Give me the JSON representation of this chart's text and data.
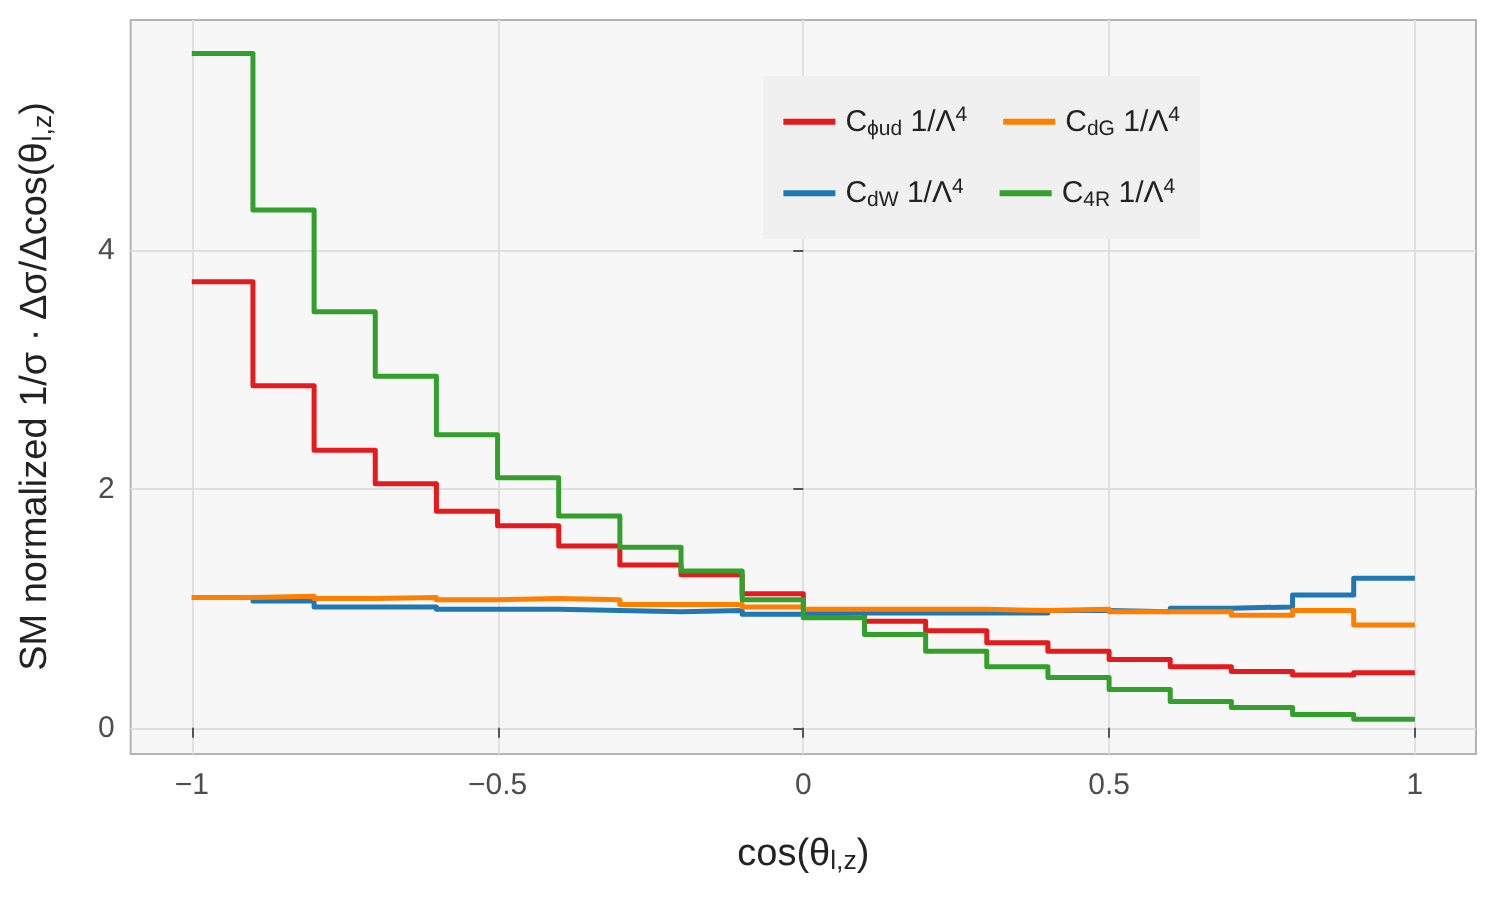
{
  "chart_data": {
    "type": "histogram",
    "xlabel": "cos(θ$_{l,z}$)",
    "ylabel": "SM normalized 1/σ · Δσ/Δcos(θ$_{l,z}$)",
    "bins": [
      -1,
      -0.9,
      -0.8,
      -0.7,
      -0.6,
      -0.5,
      -0.4,
      -0.3,
      -0.2,
      -0.1,
      0,
      0.1,
      0.2,
      0.3,
      0.4,
      0.5,
      0.6,
      0.7,
      0.8,
      0.9,
      1
    ],
    "series": [
      {
        "name": "C$_{ϕud}$ 1/Λ$^{4}$",
        "color": "#e41a1c",
        "values": [
          3.73,
          2.86,
          2.32,
          2.04,
          1.81,
          1.69,
          1.52,
          1.36,
          1.28,
          1.12,
          0.98,
          0.89,
          0.81,
          0.71,
          0.64,
          0.57,
          0.51,
          0.47,
          0.44,
          0.46
        ]
      },
      {
        "name": "C$_{dW}$ 1/Λ$^{4}$",
        "color": "#1f78b4",
        "values": [
          1.09,
          1.06,
          1.01,
          1.01,
          0.99,
          0.99,
          0.98,
          0.97,
          0.98,
          0.95,
          0.96,
          0.96,
          0.96,
          0.96,
          0.98,
          0.97,
          1.0,
          1.01,
          1.11,
          1.25
        ]
      },
      {
        "name": "C$_{dG}$ 1/Λ$^{4}$",
        "color": "#ff7f00",
        "values": [
          1.09,
          1.1,
          1.08,
          1.09,
          1.07,
          1.08,
          1.07,
          1.03,
          1.03,
          1.01,
          0.99,
          0.99,
          0.99,
          0.98,
          0.99,
          0.97,
          0.97,
          0.94,
          0.98,
          0.86
        ]
      },
      {
        "name": "C$_{4R}$ 1/Λ$^{4}$",
        "color": "#33a02c",
        "values": [
          5.64,
          4.33,
          3.48,
          2.94,
          2.45,
          2.09,
          1.77,
          1.51,
          1.31,
          1.07,
          0.92,
          0.78,
          0.64,
          0.51,
          0.42,
          0.32,
          0.22,
          0.17,
          0.11,
          0.07
        ]
      }
    ],
    "xlim": [
      -1.1,
      1.1
    ],
    "xticks": [
      {
        "value": -1,
        "label": "−1"
      },
      {
        "value": -0.5,
        "label": "−0.5"
      },
      0,
      0.5,
      1
    ],
    "ylim": [
      -0.22,
      5.92
    ],
    "yticks": [
      0,
      2,
      4
    ],
    "grid": true,
    "legend": "top right",
    "line_style": "solid"
  }
}
